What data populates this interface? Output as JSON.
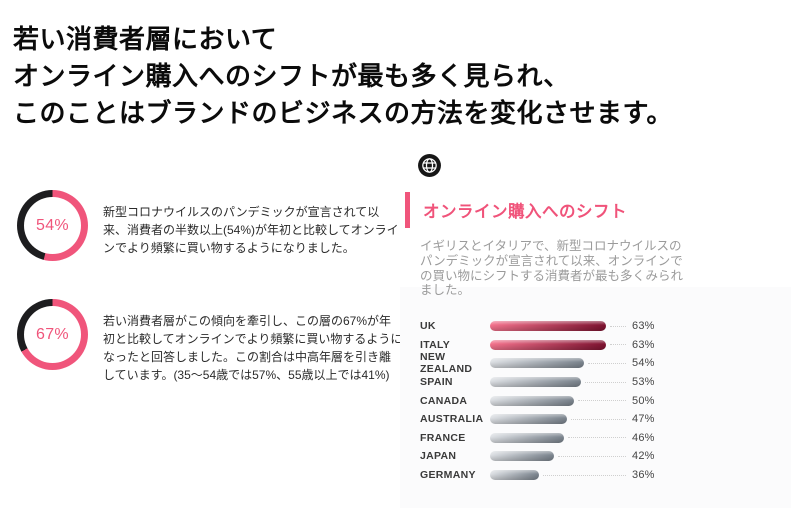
{
  "headline": {
    "line1": "若い消費者層において",
    "line2": "オンライン購入へのシフトが最も多く見られ、",
    "line3": "このことはブランドのビジネスの方法を変化させます。"
  },
  "stats": [
    {
      "center_label": "54%",
      "text": "新型コロナウイルスのパンデミックが宣言されて以来、消費者の半数以上(54%)が年初と比較してオンラインでより頻繁に買い物するようになりました。"
    },
    {
      "center_label": "67%",
      "text": "若い消費者層がこの傾向を牽引し、この層の67%が年初と比較してオンラインでより頻繁に買い物するようになったと回答しました。この割合は中高年層を引き離しています。(35〜54歳では57%、55歳以上では41%)"
    }
  ],
  "panel": {
    "icon": "globe-icon",
    "title": "オンライン購入へのシフト",
    "description": "イギリスとイタリアで、新型コロナウイルスのパンデミックが宣言されて以来、オンラインでの買い物にシフトする消費者が最も多くみられました。"
  },
  "colors": {
    "accent_pink": "#F0557B",
    "donut_dark": "#1D1D1F",
    "headline_text": "#0B0B0B",
    "body_text": "#2B2B2B",
    "desc_text": "#9B9B9B",
    "bar_highlight_gradient": [
      "#F4738D",
      "#7E1230"
    ],
    "bar_default_gradient": [
      "#DDE0E4",
      "#79828C"
    ],
    "leader_dotted": "#CFCFCF"
  },
  "chart_data": [
    {
      "type": "pie",
      "variant": "donut",
      "values": [
        54,
        46
      ],
      "center_label": "54%",
      "colors": [
        "#F0557B",
        "#1D1D1F"
      ],
      "start_angle": "top",
      "direction": "clockwise"
    },
    {
      "type": "pie",
      "variant": "donut",
      "values": [
        67,
        33
      ],
      "center_label": "67%",
      "colors": [
        "#F0557B",
        "#1D1D1F"
      ],
      "start_angle": "top",
      "direction": "clockwise"
    },
    {
      "type": "bar",
      "orientation": "horizontal",
      "title": "オンライン購入へのシフト",
      "categories": [
        "UK",
        "ITALY",
        "NEW ZEALAND",
        "SPAIN",
        "CANADA",
        "AUSTRALIA",
        "FRANCE",
        "JAPAN",
        "GERMANY"
      ],
      "values": [
        63,
        63,
        54,
        53,
        50,
        47,
        46,
        42,
        36
      ],
      "value_labels": [
        "63%",
        "63%",
        "54%",
        "53%",
        "50%",
        "47%",
        "46%",
        "42%",
        "36%"
      ],
      "highlighted_categories": [
        "UK",
        "ITALY"
      ],
      "highlight_color_gradient": [
        "#F4738D",
        "#7E1230"
      ],
      "default_color_gradient": [
        "#DDE0E4",
        "#79828C"
      ],
      "value_suffix": "%",
      "grid": false,
      "legend": false
    }
  ]
}
